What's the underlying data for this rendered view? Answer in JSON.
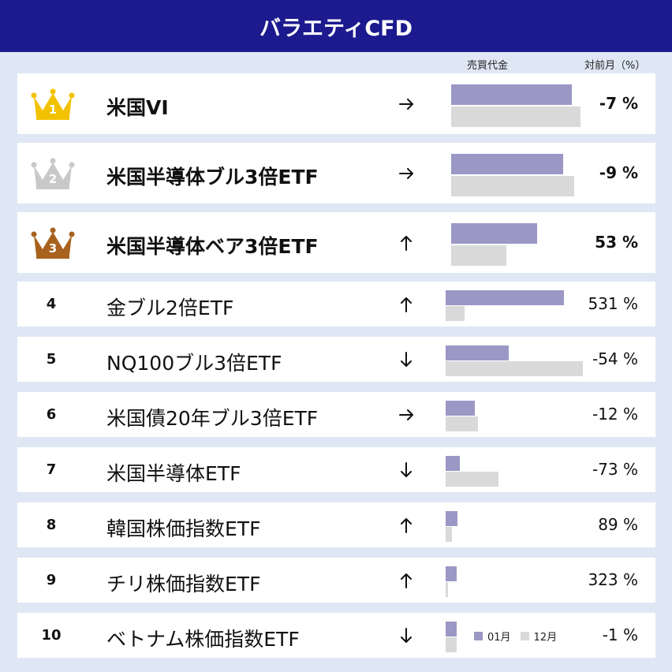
{
  "header": {
    "title": "バラエティCFD"
  },
  "columns": {
    "volume": "売買代金",
    "mom": "対前月（%）"
  },
  "colors": {
    "header_bg": "#1c1a8e",
    "current": "#9b98c5",
    "previous": "#d9d9d9",
    "gold": "#f2c200",
    "silver": "#c8c8c8",
    "bronze": "#a8621e"
  },
  "legend": {
    "current": "01月",
    "previous": "12月"
  },
  "rows": [
    {
      "rank": "1",
      "crown": "gold",
      "name": "米国VI",
      "arrow": "→",
      "pct": "-7 %"
    },
    {
      "rank": "2",
      "crown": "silver",
      "name": "米国半導体ブル3倍ETF",
      "arrow": "→",
      "pct": "-9 %"
    },
    {
      "rank": "3",
      "crown": "bronze",
      "name": "米国半導体ベア3倍ETF",
      "arrow": "↑",
      "pct": "53 %"
    },
    {
      "rank": "4",
      "name": "金ブル2倍ETF",
      "arrow": "↑",
      "pct": "531 %"
    },
    {
      "rank": "5",
      "name": "NQ100ブル3倍ETF",
      "arrow": "↓",
      "pct": "-54 %"
    },
    {
      "rank": "6",
      "name": "米国債20年ブル3倍ETF",
      "arrow": "→",
      "pct": "-12 %"
    },
    {
      "rank": "7",
      "name": "米国半導体ETF",
      "arrow": "↓",
      "pct": "-73 %"
    },
    {
      "rank": "8",
      "name": "韓国株価指数ETF",
      "arrow": "↑",
      "pct": "89 %"
    },
    {
      "rank": "9",
      "name": "チリ株価指数ETF",
      "arrow": "↑",
      "pct": "323 %"
    },
    {
      "rank": "10",
      "name": "ベトナム株価指数ETF",
      "arrow": "↓",
      "pct": "-1 %"
    }
  ],
  "chart_data": {
    "type": "bar",
    "orientation": "horizontal",
    "title": "バラエティCFD",
    "categories": [
      "米国VI",
      "米国半導体ブル3倍ETF",
      "米国半導体ベア3倍ETF",
      "金ブル2倍ETF",
      "NQ100ブル3倍ETF",
      "米国債20年ブル3倍ETF",
      "米国半導体ETF",
      "韓国株価指数ETF",
      "チリ株価指数ETF",
      "ベトナム株価指数ETF"
    ],
    "series": [
      {
        "name": "01月",
        "values": [
          100,
          93,
          71,
          98,
          52,
          24,
          12,
          10,
          9,
          9
        ]
      },
      {
        "name": "12月",
        "values": [
          107,
          102,
          46,
          16,
          114,
          27,
          44,
          5,
          2,
          9
        ]
      }
    ],
    "xlim": [
      0,
      120
    ],
    "grid": false,
    "legend": "bottom-right"
  }
}
